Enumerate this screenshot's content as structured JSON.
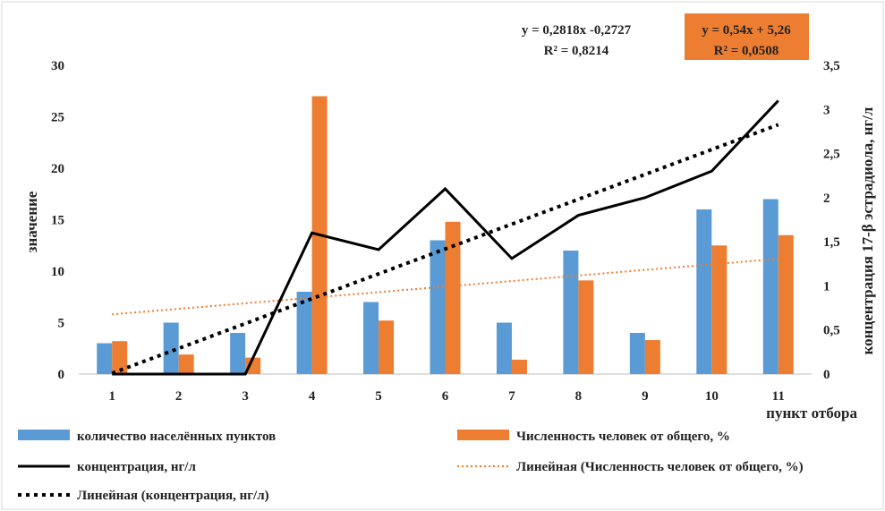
{
  "chart_data": {
    "type": "bar",
    "categories": [
      "1",
      "2",
      "3",
      "4",
      "5",
      "6",
      "7",
      "8",
      "9",
      "10",
      "11"
    ],
    "xlabel": "пункт отбора",
    "ylabel": "значение",
    "y2label": "концентрация 17-β эстрадиола, нг/л",
    "ylim": [
      0,
      30
    ],
    "yticks": [
      0,
      5,
      10,
      15,
      20,
      25,
      30
    ],
    "y2lim": [
      0,
      3.5
    ],
    "y2ticks": [
      "0",
      "0,5",
      "1",
      "1,5",
      "2",
      "2,5",
      "3",
      "3,5"
    ],
    "y2tick_values": [
      0,
      0.5,
      1,
      1.5,
      2,
      2.5,
      3,
      3.5
    ],
    "series": [
      {
        "name": "количество населённых пунктов",
        "type": "bar",
        "axis": "left",
        "color": "#5B9BD5",
        "values": [
          3,
          5,
          4,
          8,
          7,
          13,
          5,
          12,
          4,
          16,
          17
        ]
      },
      {
        "name": "Численность человек от общего, %",
        "type": "bar",
        "axis": "left",
        "color": "#ED7D31",
        "values": [
          3.2,
          1.9,
          1.6,
          27,
          5.2,
          14.8,
          1.4,
          9.1,
          3.3,
          12.5,
          13.5
        ]
      },
      {
        "name": "концентрация, нг/л",
        "type": "line",
        "axis": "right",
        "color": "#000000",
        "values": [
          0,
          0,
          0,
          1.6,
          1.41,
          2.1,
          1.31,
          1.8,
          2.0,
          2.3,
          3.1
        ]
      }
    ],
    "trendlines": [
      {
        "name": "Линейная (Численность человек от общего, %)",
        "axis": "left",
        "color": "#ED7D31",
        "slope": 0.54,
        "intercept": 5.26,
        "equation": "y = 0,54x + 5,26",
        "r2": "R² = 0,0508"
      },
      {
        "name": "Линейная (концентрация, нг/л)",
        "axis": "right",
        "color": "#000000",
        "slope": 0.2818,
        "intercept": -0.2727,
        "equation": "y = 0,2818x -0,2727",
        "r2": "R² = 0,8214"
      }
    ],
    "legend": [
      {
        "label": "количество населённых пунктов",
        "kind": "bar",
        "color": "#5B9BD5"
      },
      {
        "label": "Численность человек от общего, %",
        "kind": "bar",
        "color": "#ED7D31"
      },
      {
        "label": "концентрация, нг/л",
        "kind": "line",
        "color": "#000000"
      },
      {
        "label": "Линейная (Численность человек от общего, %)",
        "kind": "dotted-thin",
        "color": "#ED7D31"
      },
      {
        "label": "Линейная (концентрация, нг/л)",
        "kind": "dotted-thick",
        "color": "#000000"
      }
    ],
    "grid": false
  }
}
